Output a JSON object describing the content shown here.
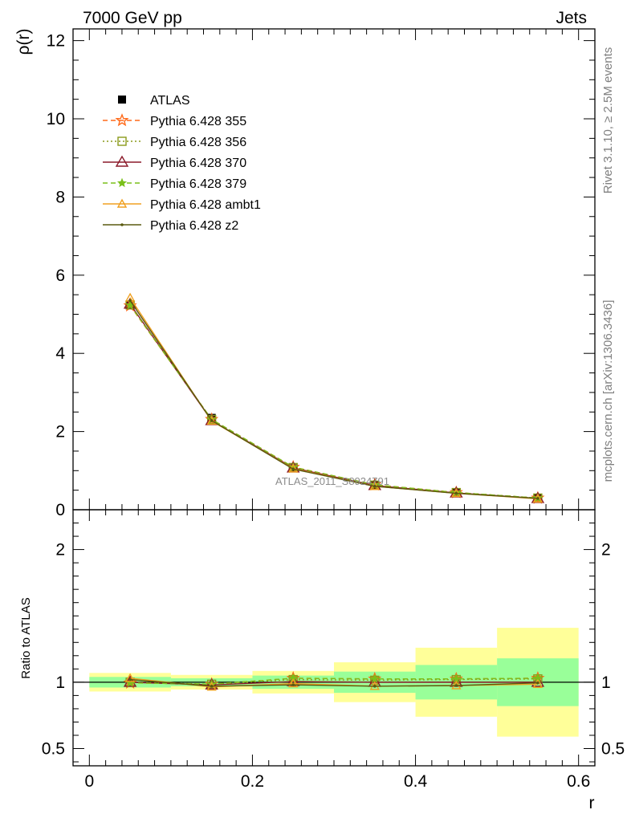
{
  "header": {
    "left_title": "7000 GeV pp",
    "right_title": "Jets",
    "side_label_top": "Rivet 3.1.10, ≥ 2.5M events",
    "side_label_bottom": "mcplots.cern.ch [arXiv:1306.3436]",
    "watermark": "ATLAS_2011_S8924791"
  },
  "colors": {
    "atlas": "#000000",
    "p355": "#ff6a1a",
    "p356": "#8a9a1a",
    "p370": "#8b1a2a",
    "p379": "#7ac01a",
    "ambt1": "#f0a020",
    "z2": "#5a5a10",
    "band_inner": "#99ff99",
    "band_outer": "#ffff99"
  },
  "chart_data": [
    {
      "type": "line",
      "panel": "main",
      "ylabel": "ρ(r)",
      "xlabel": "r",
      "xlim": [
        -0.02,
        0.62
      ],
      "ylim": [
        0,
        12.3
      ],
      "yticks": [
        0,
        2,
        4,
        6,
        8,
        10,
        12
      ],
      "legend_position": "top-left",
      "x": [
        0.05,
        0.15,
        0.25,
        0.35,
        0.45,
        0.55
      ],
      "series": [
        {
          "name": "ATLAS",
          "style": "data",
          "values": [
            5.25,
            2.35,
            1.06,
            0.62,
            0.43,
            0.29
          ]
        },
        {
          "name": "Pythia 6.428 355",
          "style": "star-dashed",
          "values": [
            5.22,
            2.31,
            1.09,
            0.64,
            0.44,
            0.3
          ]
        },
        {
          "name": "Pythia 6.428 356",
          "style": "square-dotted",
          "values": [
            5.24,
            2.31,
            1.08,
            0.63,
            0.44,
            0.3
          ]
        },
        {
          "name": "Pythia 6.428 370",
          "style": "triangle-solid",
          "values": [
            5.26,
            2.28,
            1.07,
            0.62,
            0.43,
            0.29
          ]
        },
        {
          "name": "Pythia 6.428 379",
          "style": "star-dashed",
          "values": [
            5.23,
            2.31,
            1.09,
            0.64,
            0.44,
            0.3
          ]
        },
        {
          "name": "Pythia 6.428 ambt1",
          "style": "triangle-solid",
          "values": [
            5.42,
            2.27,
            1.05,
            0.6,
            0.42,
            0.28
          ]
        },
        {
          "name": "Pythia 6.428 z2",
          "style": "dot-solid",
          "values": [
            5.35,
            2.28,
            1.04,
            0.6,
            0.42,
            0.29
          ]
        }
      ]
    },
    {
      "type": "line",
      "panel": "ratio",
      "ylabel": "Ratio to ATLAS",
      "xlabel": "r",
      "xlim": [
        -0.02,
        0.62
      ],
      "ylim": [
        0.37,
        2.3
      ],
      "yticks": [
        0.5,
        1,
        2
      ],
      "xticks": [
        0,
        0.2,
        0.4,
        0.6
      ],
      "bands": {
        "edges": [
          0.0,
          0.1,
          0.2,
          0.3,
          0.4,
          0.5,
          0.6
        ],
        "inner": [
          [
            0.96,
            1.04
          ],
          [
            0.97,
            1.03
          ],
          [
            0.95,
            1.05
          ],
          [
            0.92,
            1.08
          ],
          [
            0.87,
            1.13
          ],
          [
            0.82,
            1.18
          ]
        ],
        "outer": [
          [
            0.93,
            1.07
          ],
          [
            0.945,
            1.055
          ],
          [
            0.915,
            1.085
          ],
          [
            0.85,
            1.15
          ],
          [
            0.74,
            1.26
          ],
          [
            0.59,
            1.41
          ]
        ]
      },
      "x": [
        0.05,
        0.15,
        0.25,
        0.35,
        0.45,
        0.55
      ],
      "series": [
        {
          "name": "Pythia 6.428 355",
          "values": [
            0.995,
            0.985,
            1.03,
            1.025,
            1.025,
            1.03
          ]
        },
        {
          "name": "Pythia 6.428 356",
          "values": [
            1.0,
            0.985,
            1.02,
            1.015,
            1.02,
            1.025
          ]
        },
        {
          "name": "Pythia 6.428 370",
          "values": [
            1.0,
            0.98,
            1.005,
            1.0,
            1.0,
            1.0
          ]
        },
        {
          "name": "Pythia 6.428 379",
          "values": [
            0.995,
            0.985,
            1.03,
            1.025,
            1.025,
            1.03
          ]
        },
        {
          "name": "Pythia 6.428 ambt1",
          "values": [
            1.03,
            0.965,
            0.99,
            0.97,
            0.975,
            0.985
          ]
        },
        {
          "name": "Pythia 6.428 z2",
          "values": [
            1.02,
            0.97,
            0.98,
            0.97,
            0.975,
            0.995
          ]
        }
      ]
    }
  ]
}
